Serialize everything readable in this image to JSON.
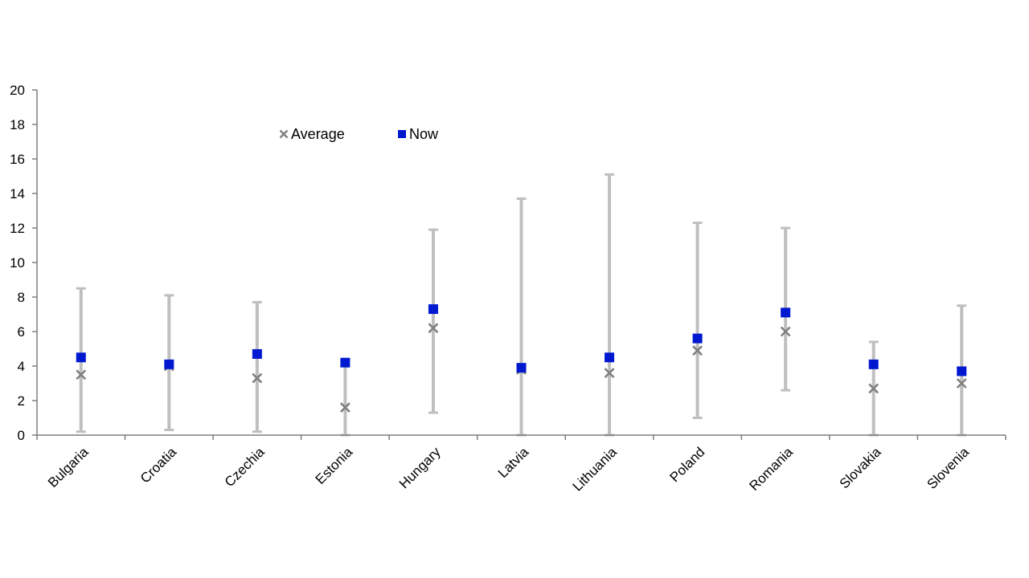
{
  "chart_data": {
    "type": "scatter",
    "categories": [
      "Bulgaria",
      "Croatia",
      "Czechia",
      "Estonia",
      "Hungary",
      "Latvia",
      "Lithuania",
      "Poland",
      "Romania",
      "Slovakia",
      "Slovenia"
    ],
    "range": {
      "min": [
        0.2,
        0.3,
        0.2,
        0.0,
        1.3,
        0.0,
        0.0,
        1.0,
        2.6,
        0.0,
        0.0
      ],
      "max": [
        8.5,
        8.1,
        7.7,
        4.0,
        11.9,
        13.7,
        15.1,
        12.3,
        12.0,
        5.4,
        7.5
      ]
    },
    "series": [
      {
        "name": "Average",
        "marker": "x",
        "color": "#808080",
        "values": [
          3.5,
          4.0,
          3.3,
          1.6,
          6.2,
          3.8,
          3.6,
          4.9,
          6.0,
          2.7,
          3.0
        ]
      },
      {
        "name": "Now",
        "marker": "square",
        "color": "#0018d0",
        "values": [
          4.5,
          4.1,
          4.7,
          4.2,
          7.3,
          3.9,
          4.5,
          5.6,
          7.1,
          4.1,
          3.7
        ]
      }
    ],
    "ylim": [
      0,
      20
    ],
    "yticks": [
      0,
      2,
      4,
      6,
      8,
      10,
      12,
      14,
      16,
      18,
      20
    ],
    "legend_position": "top-left",
    "grid": false,
    "range_color": "#bfbfbf",
    "axis_color": "#7f7f7f"
  }
}
